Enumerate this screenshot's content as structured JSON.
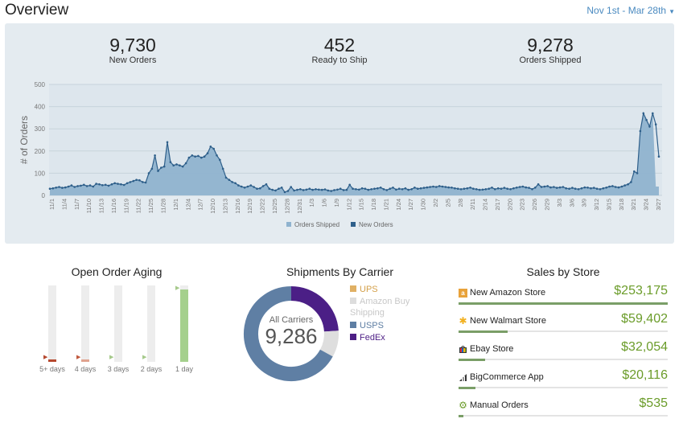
{
  "header": {
    "title": "Overview",
    "date_range": "Nov 1st - Mar 28th"
  },
  "stats": [
    {
      "value": "9,730",
      "label": "New Orders"
    },
    {
      "value": "452",
      "label": "Ready to Ship"
    },
    {
      "value": "9,278",
      "label": "Orders Shipped"
    }
  ],
  "chart_data": {
    "type": "area",
    "ylabel": "# of Orders",
    "ylim": [
      0,
      500
    ],
    "yticks": [
      0,
      100,
      200,
      300,
      400,
      500
    ],
    "xtick_labels": [
      "11/1",
      "11/4",
      "11/7",
      "11/10",
      "11/13",
      "11/16",
      "11/19",
      "11/22",
      "11/25",
      "11/28",
      "12/1",
      "12/4",
      "12/7",
      "12/10",
      "12/13",
      "12/16",
      "12/19",
      "12/22",
      "12/25",
      "12/28",
      "12/31",
      "1/3",
      "1/6",
      "1/9",
      "1/12",
      "1/15",
      "1/18",
      "1/21",
      "1/24",
      "1/27",
      "1/30",
      "2/2",
      "2/5",
      "2/8",
      "2/11",
      "2/14",
      "2/17",
      "2/20",
      "2/23",
      "2/26",
      "2/29",
      "3/3",
      "3/6",
      "3/9",
      "3/12",
      "3/15",
      "3/18",
      "3/21",
      "3/24",
      "3/27"
    ],
    "series": [
      {
        "name": "Orders Shipped",
        "color": "#8fb3cf"
      },
      {
        "name": "New Orders",
        "color": "#2e5f8a"
      }
    ],
    "new_orders": [
      30,
      32,
      35,
      38,
      34,
      36,
      40,
      45,
      38,
      42,
      44,
      48,
      42,
      45,
      40,
      52,
      50,
      46,
      48,
      44,
      50,
      55,
      52,
      50,
      47,
      55,
      60,
      65,
      70,
      68,
      60,
      58,
      100,
      120,
      180,
      110,
      125,
      130,
      240,
      150,
      135,
      140,
      135,
      130,
      145,
      170,
      180,
      175,
      178,
      170,
      175,
      190,
      220,
      210,
      180,
      160,
      120,
      80,
      70,
      60,
      55,
      45,
      40,
      35,
      40,
      45,
      38,
      30,
      32,
      42,
      50,
      30,
      25,
      22,
      30,
      35,
      15,
      20,
      38,
      22,
      25,
      28,
      24,
      26,
      30,
      25,
      28,
      26,
      25,
      27,
      22,
      20,
      24,
      26,
      30,
      24,
      25,
      48,
      30,
      28,
      26,
      32,
      30,
      25,
      28,
      30,
      32,
      35,
      28,
      24,
      30,
      35,
      26,
      30,
      28,
      32,
      25,
      28,
      35,
      30,
      32,
      34,
      36,
      38,
      40,
      38,
      42,
      40,
      38,
      36,
      35,
      32,
      30,
      28,
      30,
      32,
      35,
      30,
      28,
      25,
      26,
      28,
      30,
      35,
      28,
      32,
      30,
      34,
      30,
      28,
      32,
      35,
      38,
      40,
      36,
      34,
      28,
      35,
      50,
      38,
      40,
      42,
      36,
      38,
      34,
      36,
      38,
      32,
      30,
      34,
      30,
      28,
      32,
      36,
      35,
      32,
      34,
      30,
      28,
      32,
      35,
      40,
      42,
      38,
      36,
      40,
      45,
      50,
      60,
      108,
      100,
      290,
      370,
      340,
      310,
      370,
      320,
      175
    ],
    "shipped": [
      30,
      32,
      35,
      38,
      34,
      36,
      40,
      45,
      38,
      42,
      44,
      48,
      42,
      45,
      40,
      52,
      50,
      46,
      48,
      44,
      50,
      55,
      52,
      50,
      47,
      55,
      60,
      65,
      70,
      68,
      60,
      58,
      100,
      120,
      180,
      110,
      125,
      130,
      240,
      150,
      135,
      140,
      135,
      130,
      145,
      170,
      180,
      175,
      178,
      170,
      175,
      190,
      220,
      210,
      180,
      160,
      120,
      80,
      70,
      60,
      55,
      45,
      40,
      35,
      40,
      45,
      38,
      30,
      32,
      42,
      50,
      30,
      25,
      22,
      30,
      35,
      15,
      20,
      38,
      22,
      25,
      28,
      24,
      26,
      30,
      25,
      28,
      26,
      25,
      27,
      22,
      20,
      24,
      26,
      30,
      24,
      25,
      48,
      30,
      28,
      26,
      32,
      30,
      25,
      28,
      30,
      32,
      35,
      28,
      24,
      30,
      35,
      26,
      30,
      28,
      32,
      25,
      28,
      35,
      30,
      32,
      34,
      36,
      38,
      40,
      38,
      42,
      40,
      38,
      36,
      35,
      32,
      30,
      28,
      30,
      32,
      35,
      30,
      28,
      25,
      26,
      28,
      30,
      35,
      28,
      32,
      30,
      34,
      30,
      28,
      32,
      35,
      38,
      40,
      36,
      34,
      28,
      35,
      50,
      38,
      40,
      42,
      36,
      38,
      34,
      36,
      38,
      32,
      30,
      34,
      30,
      28,
      32,
      36,
      35,
      32,
      34,
      30,
      28,
      32,
      35,
      40,
      42,
      38,
      36,
      40,
      45,
      50,
      60,
      108,
      100,
      290,
      370,
      340,
      310,
      370,
      40,
      40
    ]
  },
  "aging": {
    "title": "Open Order Aging",
    "items": [
      {
        "label": "5+ days",
        "fraction": 0.03,
        "color": "#b5472e",
        "marker_color": "#b5472e"
      },
      {
        "label": "4 days",
        "fraction": 0.01,
        "color": "#e0a38f",
        "marker_color": "#c0583c"
      },
      {
        "label": "3 days",
        "fraction": 0.0,
        "color": "#a5c98a",
        "marker_color": "#a5c98a"
      },
      {
        "label": "2 days",
        "fraction": 0.0,
        "color": "#a5c98a",
        "marker_color": "#a5c98a"
      },
      {
        "label": "1 day",
        "fraction": 0.95,
        "color": "#a5d08d",
        "marker_color": "#a5c98a"
      }
    ]
  },
  "carriers": {
    "title": "Shipments By Carrier",
    "center_label": "All Carriers",
    "center_value": "9,286",
    "legend": [
      {
        "name": "UPS",
        "color": "#e0b064"
      },
      {
        "name": "Amazon Buy Shipping",
        "color": "#dddddd"
      },
      {
        "name": "USPS",
        "color": "#5e7ea3"
      },
      {
        "name": "FedEx",
        "color": "#4d1e85"
      }
    ],
    "slices": [
      {
        "name": "FedEx",
        "value": 24,
        "color": "#4b1f86"
      },
      {
        "name": "Amazon Buy Shipping",
        "value": 9,
        "color": "#dedede"
      },
      {
        "name": "USPS",
        "value": 67,
        "color": "#5f7fa4"
      }
    ]
  },
  "sales": {
    "title": "Sales by Store",
    "stores": [
      {
        "name": "New Amazon Store",
        "amount": "$253,175",
        "share": 1.0,
        "icon": "amazon-icon"
      },
      {
        "name": "New Walmart Store",
        "amount": "$59,402",
        "share": 0.235,
        "icon": "walmart-icon"
      },
      {
        "name": "Ebay Store",
        "amount": "$32,054",
        "share": 0.127,
        "icon": "ebay-icon"
      },
      {
        "name": "BigCommerce App",
        "amount": "$20,116",
        "share": 0.08,
        "icon": "bigcommerce-icon"
      },
      {
        "name": "Manual Orders",
        "amount": "$535",
        "share": 0.02,
        "icon": "gear-icon"
      }
    ]
  }
}
